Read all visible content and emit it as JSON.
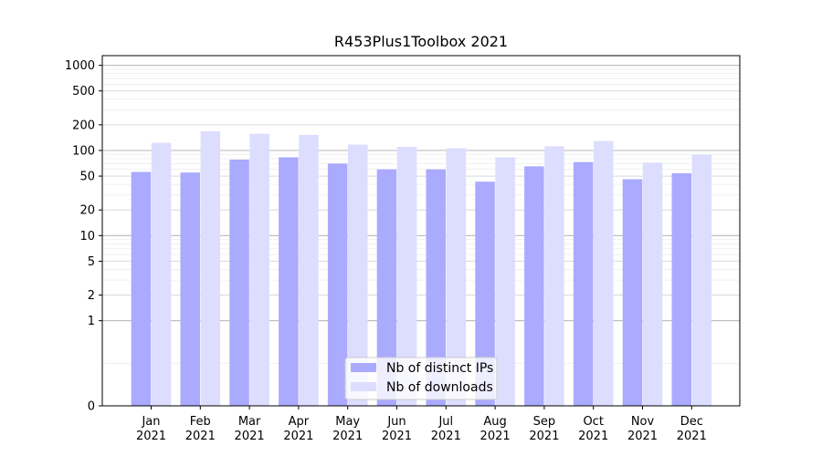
{
  "chart_data": {
    "type": "bar",
    "title": "R453Plus1Toolbox 2021",
    "xlabel": "",
    "ylabel": "",
    "y_scale": "symlog",
    "ylim": [
      0,
      1300
    ],
    "grid": "horizontal",
    "legend_position": "bottom-center",
    "categories": [
      [
        "Jan",
        "2021"
      ],
      [
        "Feb",
        "2021"
      ],
      [
        "Mar",
        "2021"
      ],
      [
        "Apr",
        "2021"
      ],
      [
        "May",
        "2021"
      ],
      [
        "Jun",
        "2021"
      ],
      [
        "Jul",
        "2021"
      ],
      [
        "Aug",
        "2021"
      ],
      [
        "Sep",
        "2021"
      ],
      [
        "Oct",
        "2021"
      ],
      [
        "Nov",
        "2021"
      ],
      [
        "Dec",
        "2021"
      ]
    ],
    "y_ticks": [
      0,
      1,
      2,
      5,
      10,
      20,
      50,
      100,
      200,
      500,
      1000
    ],
    "y_tick_labels": [
      "0",
      "1",
      "2",
      "5",
      "10",
      "20",
      "50",
      "100",
      "200",
      "500",
      "1000"
    ],
    "series": [
      {
        "name": "Nb of distinct IPs",
        "color": "#aaaaff",
        "values": [
          56,
          55,
          78,
          83,
          70,
          60,
          60,
          43,
          65,
          73,
          46,
          54
        ]
      },
      {
        "name": "Nb of downloads",
        "color": "#ddddff",
        "values": [
          123,
          168,
          157,
          152,
          117,
          110,
          106,
          83,
          112,
          129,
          72,
          89
        ]
      }
    ]
  }
}
